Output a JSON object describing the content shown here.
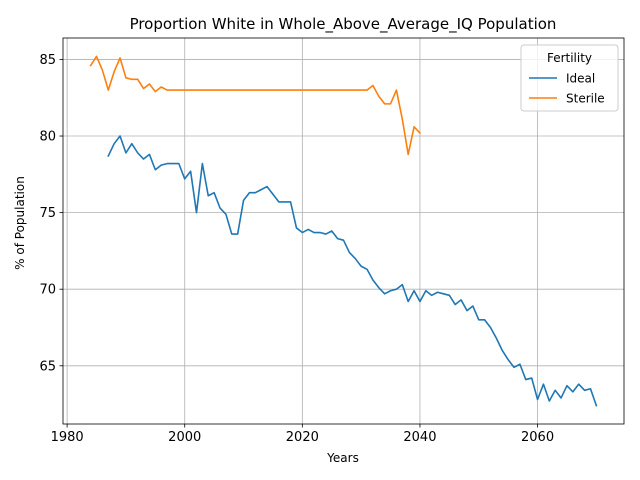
{
  "chart_data": {
    "type": "line",
    "title": "Proportion White in Whole_Above_Average_IQ Population",
    "xlabel": "Years",
    "ylabel": "% of Population",
    "xlim": [
      1979.3,
      2074.7
    ],
    "ylim": [
      61.2,
      86.4
    ],
    "xticks": [
      1980,
      2000,
      2020,
      2040,
      2060
    ],
    "yticks": [
      65,
      70,
      75,
      80,
      85
    ],
    "grid": true,
    "legend": {
      "title": "Fertility",
      "placement": "top-right"
    },
    "colors": {
      "Ideal": "#1f77b4",
      "Sterile": "#ff7f0e"
    },
    "series": [
      {
        "name": "Ideal",
        "x": [
          1987,
          1988,
          1989,
          1990,
          1991,
          1992,
          1993,
          1994,
          1995,
          1996,
          1997,
          1998,
          1999,
          2000,
          2001,
          2002,
          2003,
          2004,
          2005,
          2006,
          2007,
          2008,
          2009,
          2010,
          2011,
          2012,
          2013,
          2014,
          2015,
          2016,
          2017,
          2018,
          2019,
          2020,
          2021,
          2022,
          2023,
          2024,
          2025,
          2026,
          2027,
          2028,
          2029,
          2030,
          2031,
          2032,
          2033,
          2034,
          2035,
          2036,
          2037,
          2038,
          2039,
          2040,
          2041,
          2042,
          2043,
          2044,
          2045,
          2046,
          2047,
          2048,
          2049,
          2050,
          2051,
          2052,
          2053,
          2054,
          2055,
          2056,
          2057,
          2058,
          2059,
          2060,
          2061,
          2062,
          2063,
          2064,
          2065,
          2066,
          2067,
          2068,
          2069,
          2070
        ],
        "values": [
          78.7,
          79.5,
          80.0,
          78.9,
          79.5,
          78.9,
          78.5,
          78.8,
          77.8,
          78.1,
          78.2,
          78.2,
          78.2,
          77.2,
          77.7,
          75.0,
          78.2,
          76.1,
          76.3,
          75.3,
          74.9,
          73.6,
          73.6,
          75.8,
          76.3,
          76.3,
          76.5,
          76.7,
          76.2,
          75.7,
          75.7,
          75.7,
          74.0,
          73.7,
          73.9,
          73.7,
          73.7,
          73.6,
          73.8,
          73.3,
          73.2,
          72.4,
          72.0,
          71.5,
          71.3,
          70.6,
          70.1,
          69.7,
          69.9,
          70.0,
          70.3,
          69.2,
          69.9,
          69.2,
          69.9,
          69.6,
          69.8,
          69.7,
          69.6,
          69.0,
          69.3,
          68.6,
          68.9,
          68.0,
          68.0,
          67.5,
          66.8,
          66.0,
          65.4,
          64.9,
          65.1,
          64.1,
          64.2,
          62.8,
          63.8,
          62.7,
          63.4,
          62.9,
          63.7,
          63.3,
          63.8,
          63.4,
          63.5,
          62.4
        ]
      },
      {
        "name": "Sterile",
        "x": [
          1984,
          1985,
          1986,
          1987,
          1988,
          1989,
          1990,
          1991,
          1992,
          1993,
          1994,
          1995,
          1996,
          1997,
          1998,
          1999,
          2000,
          2001,
          2002,
          2003,
          2004,
          2005,
          2006,
          2007,
          2008,
          2009,
          2010,
          2011,
          2012,
          2013,
          2014,
          2015,
          2016,
          2017,
          2018,
          2019,
          2020,
          2021,
          2022,
          2023,
          2024,
          2025,
          2026,
          2027,
          2028,
          2029,
          2030,
          2031,
          2032,
          2033,
          2034,
          2035,
          2036,
          2037,
          2038,
          2039,
          2040
        ],
        "values": [
          84.6,
          85.2,
          84.3,
          83.0,
          84.2,
          85.1,
          83.8,
          83.7,
          83.7,
          83.1,
          83.4,
          82.9,
          83.2,
          83.0,
          83.0,
          83.0,
          83.0,
          83.0,
          83.0,
          83.0,
          83.0,
          83.0,
          83.0,
          83.0,
          83.0,
          83.0,
          83.0,
          83.0,
          83.0,
          83.0,
          83.0,
          83.0,
          83.0,
          83.0,
          83.0,
          83.0,
          83.0,
          83.0,
          83.0,
          83.0,
          83.0,
          83.0,
          83.0,
          83.0,
          83.0,
          83.0,
          83.0,
          83.0,
          83.3,
          82.6,
          82.1,
          82.1,
          83.0,
          81.1,
          78.8,
          80.6,
          80.2
        ]
      }
    ]
  }
}
